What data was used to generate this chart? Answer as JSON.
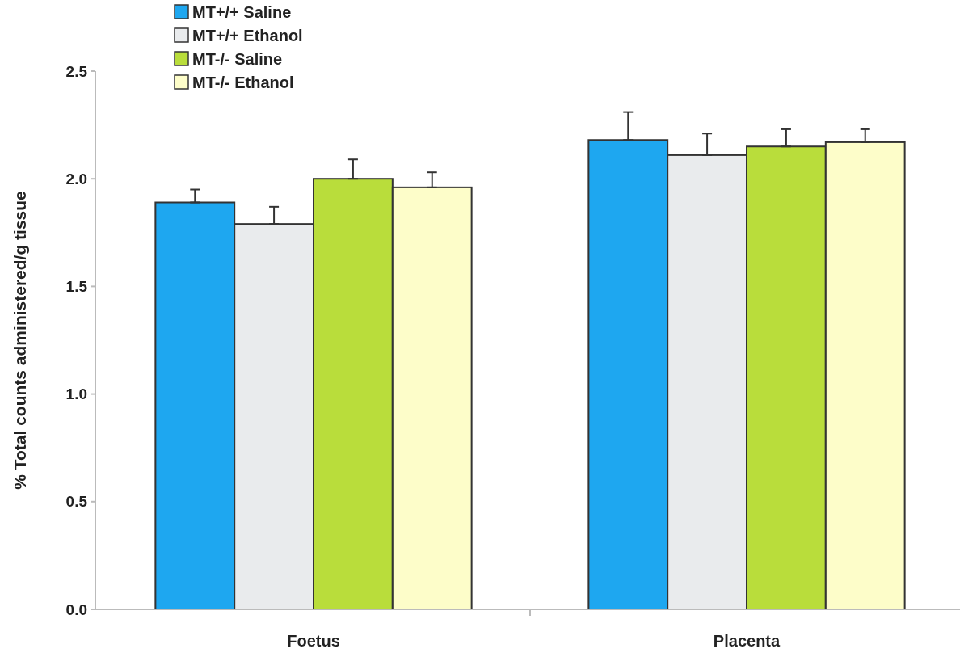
{
  "chart_data": {
    "type": "bar",
    "ylabel": "% Total counts administered/g tissue",
    "categories": [
      "Foetus",
      "Placenta"
    ],
    "series": [
      {
        "name": "MT+/+ Saline",
        "color": "#1ea7f0",
        "values": [
          1.89,
          2.18
        ],
        "errors": [
          [
            1.89,
            1.95
          ],
          [
            2.18,
            2.31
          ]
        ]
      },
      {
        "name": "MT+/+ Ethanol",
        "color": "#e9ebed",
        "values": [
          1.79,
          2.11
        ],
        "errors": [
          [
            1.79,
            1.87
          ],
          [
            2.11,
            2.21
          ]
        ]
      },
      {
        "name": "MT-/- Saline",
        "color": "#b9dd3b",
        "values": [
          2.0,
          2.15
        ],
        "errors": [
          [
            2.0,
            2.09
          ],
          [
            2.15,
            2.23
          ]
        ]
      },
      {
        "name": "MT-/- Ethanol",
        "color": "#fdfdc9",
        "values": [
          1.96,
          2.17
        ],
        "errors": [
          [
            1.96,
            2.03
          ],
          [
            2.17,
            2.23
          ]
        ]
      }
    ],
    "ylim": [
      0,
      2.5
    ],
    "yticks": [
      {
        "value": 0,
        "label": "0.0"
      },
      {
        "value": 0.5,
        "label": "0.5"
      },
      {
        "value": 1,
        "label": "1.0"
      },
      {
        "value": 1.5,
        "label": "1.5"
      },
      {
        "value": 2,
        "label": "2.0"
      },
      {
        "value": 2.5,
        "label": "2.5"
      }
    ],
    "grid": false,
    "legend": "top left"
  }
}
